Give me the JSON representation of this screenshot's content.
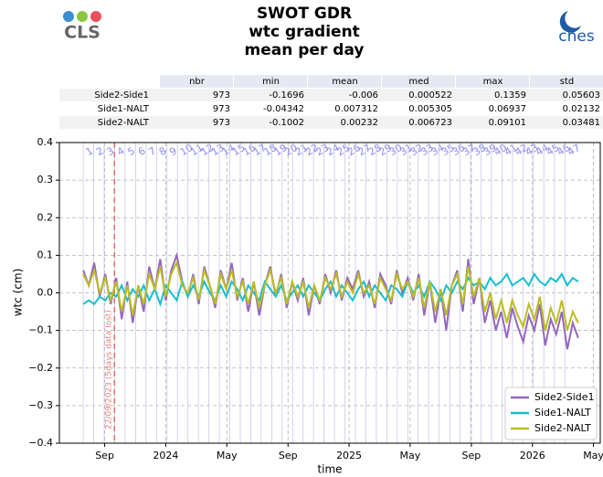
{
  "header": {
    "logo_left": "CLS",
    "logo_right": "cnes"
  },
  "table": {
    "columns": [
      "nbr",
      "min",
      "mean",
      "med",
      "max",
      "std"
    ],
    "rows": [
      {
        "label": "Side2-Side1",
        "cells": [
          973,
          -0.1696,
          -0.006,
          0.000522,
          0.1359,
          0.05603
        ]
      },
      {
        "label": "Side1-NALT",
        "cells": [
          973,
          -0.04342,
          0.007312,
          0.005305,
          0.06937,
          0.02132
        ]
      },
      {
        "label": "Side2-NALT",
        "cells": [
          973,
          -0.1002,
          0.00232,
          0.006723,
          0.09101,
          0.03481
        ]
      }
    ]
  },
  "chart_data": {
    "type": "line",
    "title": [
      "SWOT GDR",
      "wtc gradient",
      "mean per day"
    ],
    "xlabel": "time",
    "ylabel": "wtc (cm)",
    "xlim": [
      2023.42,
      2026.37
    ],
    "ylim": [
      -0.4,
      0.4
    ],
    "xticks": [
      {
        "value": 2023.667,
        "label": "Sep"
      },
      2024,
      {
        "value": 2024.333,
        "label": "May"
      },
      {
        "value": 2024.667,
        "label": "Sep"
      },
      2025,
      {
        "value": 2025.333,
        "label": "May"
      },
      {
        "value": 2025.667,
        "label": "Sep"
      },
      2026,
      {
        "value": 2026.333,
        "label": "May"
      }
    ],
    "yticks": [
      {
        "value": -0.4,
        "label": "−0.4"
      },
      {
        "value": -0.3,
        "label": "−0.3"
      },
      {
        "value": -0.2,
        "label": "−0.2"
      },
      {
        "value": -0.1,
        "label": "−0.1"
      },
      {
        "value": 0,
        "label": "0.0"
      },
      0.1,
      0.2,
      0.3,
      0.4
    ],
    "grid": true,
    "legend": "lower right",
    "cycle_labels": [
      "1",
      "2",
      "3",
      "4",
      "5",
      "6",
      "7",
      "8",
      "9",
      "10",
      "11",
      "12",
      "13",
      "14",
      "15",
      "16",
      "17",
      "18",
      "19",
      "20",
      "21",
      "22",
      "23",
      "24",
      "25",
      "26",
      "27",
      "28",
      "29",
      "30",
      "31",
      "32",
      "33",
      "34",
      "35",
      "36",
      "37",
      "38",
      "39",
      "40",
      "41",
      "42",
      "43",
      "44",
      "45",
      "46",
      "47"
    ],
    "cycle_starts": [
      2023.55,
      2023.607,
      2023.664,
      2023.721,
      2023.778,
      2023.836,
      2023.893,
      2023.95,
      2024.007,
      2024.064,
      2024.121,
      2024.178,
      2024.235,
      2024.292,
      2024.349,
      2024.407,
      2024.464,
      2024.521,
      2024.578,
      2024.635,
      2024.692,
      2024.749,
      2024.806,
      2024.863,
      2024.92,
      2024.978,
      2025.035,
      2025.092,
      2025.149,
      2025.206,
      2025.263,
      2025.32,
      2025.377,
      2025.434,
      2025.491,
      2025.549,
      2025.606,
      2025.663,
      2025.72,
      2025.777,
      2025.834,
      2025.891,
      2025.948,
      2026.005,
      2026.062,
      2026.12,
      2026.177
    ],
    "annotation": {
      "text": "22/09/2023 (5days data lost)",
      "x": 2023.72
    },
    "x": [
      2023.55,
      2023.58,
      2023.61,
      2023.64,
      2023.67,
      2023.7,
      2023.73,
      2023.76,
      2023.79,
      2023.82,
      2023.85,
      2023.88,
      2023.91,
      2023.94,
      2023.97,
      2024.0,
      2024.03,
      2024.06,
      2024.09,
      2024.12,
      2024.15,
      2024.18,
      2024.21,
      2024.24,
      2024.27,
      2024.3,
      2024.33,
      2024.36,
      2024.39,
      2024.42,
      2024.45,
      2024.48,
      2024.51,
      2024.54,
      2024.57,
      2024.6,
      2024.63,
      2024.66,
      2024.69,
      2024.72,
      2024.75,
      2024.78,
      2024.81,
      2024.84,
      2024.87,
      2024.9,
      2024.93,
      2024.96,
      2024.99,
      2025.02,
      2025.05,
      2025.08,
      2025.11,
      2025.14,
      2025.17,
      2025.2,
      2025.23,
      2025.26,
      2025.29,
      2025.32,
      2025.35,
      2025.38,
      2025.41,
      2025.44,
      2025.47,
      2025.5,
      2025.53,
      2025.56,
      2025.59,
      2025.62,
      2025.65,
      2025.68,
      2025.71,
      2025.74,
      2025.77,
      2025.8,
      2025.83,
      2025.86,
      2025.89,
      2025.92,
      2025.95,
      2025.98,
      2026.01,
      2026.04,
      2026.07,
      2026.1,
      2026.13,
      2026.16,
      2026.19,
      2026.22,
      2026.25
    ],
    "series": [
      {
        "name": "Side2-Side1",
        "color": "#9467bd",
        "values": [
          0.06,
          0.02,
          0.08,
          -0.01,
          0.05,
          -0.03,
          0.04,
          -0.07,
          0.03,
          -0.08,
          0.02,
          -0.05,
          0.07,
          0.01,
          0.09,
          -0.02,
          0.06,
          0.1,
          0.03,
          -0.01,
          0.05,
          -0.03,
          0.07,
          0.02,
          -0.04,
          0.06,
          0.01,
          0.08,
          -0.02,
          0.04,
          -0.05,
          0.03,
          -0.06,
          0.02,
          0.07,
          -0.01,
          0.05,
          -0.04,
          0.03,
          -0.02,
          0.04,
          -0.06,
          0.02,
          -0.03,
          0.05,
          0.0,
          0.06,
          -0.02,
          0.04,
          0.01,
          0.06,
          -0.01,
          0.03,
          -0.04,
          0.05,
          0.02,
          -0.03,
          0.06,
          0.0,
          0.04,
          -0.02,
          0.05,
          -0.06,
          0.03,
          -0.08,
          0.01,
          -0.1,
          0.02,
          0.06,
          -0.05,
          0.09,
          -0.03,
          0.04,
          -0.08,
          -0.02,
          -0.1,
          -0.05,
          -0.12,
          -0.04,
          -0.09,
          -0.13,
          -0.06,
          -0.1,
          -0.03,
          -0.14,
          -0.07,
          -0.11,
          -0.05,
          -0.15,
          -0.08,
          -0.12
        ]
      },
      {
        "name": "Side1-NALT",
        "color": "#17becf",
        "values": [
          -0.03,
          -0.02,
          -0.03,
          -0.01,
          -0.02,
          0.0,
          -0.01,
          0.02,
          -0.02,
          0.01,
          -0.01,
          0.02,
          -0.02,
          0.01,
          -0.03,
          0.02,
          0.0,
          -0.02,
          0.03,
          -0.01,
          0.02,
          -0.01,
          0.03,
          0.0,
          -0.02,
          0.02,
          -0.01,
          0.03,
          0.01,
          -0.02,
          0.02,
          0.0,
          -0.02,
          0.03,
          0.01,
          -0.01,
          0.02,
          -0.02,
          0.0,
          0.02,
          -0.01,
          0.02,
          0.0,
          -0.02,
          0.01,
          0.03,
          -0.01,
          0.02,
          0.0,
          -0.02,
          0.01,
          0.03,
          -0.01,
          0.02,
          0.0,
          -0.02,
          0.02,
          0.01,
          -0.01,
          0.03,
          0.0,
          0.02,
          -0.01,
          0.03,
          0.01,
          -0.02,
          0.02,
          0.0,
          0.03,
          0.01,
          0.04,
          0.02,
          0.03,
          0.01,
          0.04,
          0.02,
          0.03,
          0.05,
          0.02,
          0.03,
          0.04,
          0.02,
          0.05,
          0.03,
          0.02,
          0.04,
          0.03,
          0.05,
          0.02,
          0.04,
          0.03
        ]
      },
      {
        "name": "Side2-NALT",
        "color": "#bcbd22",
        "values": [
          0.05,
          0.02,
          0.06,
          0.0,
          0.04,
          -0.02,
          0.03,
          -0.05,
          0.02,
          -0.06,
          0.02,
          -0.03,
          0.05,
          0.01,
          0.07,
          -0.01,
          0.05,
          0.08,
          0.02,
          0.0,
          0.04,
          -0.02,
          0.06,
          0.02,
          -0.03,
          0.05,
          0.01,
          0.06,
          -0.01,
          0.03,
          -0.03,
          0.03,
          -0.04,
          0.02,
          0.06,
          0.0,
          0.04,
          -0.03,
          0.03,
          -0.01,
          0.03,
          -0.04,
          0.02,
          -0.02,
          0.04,
          0.01,
          0.05,
          -0.01,
          0.03,
          0.0,
          0.05,
          0.0,
          0.02,
          -0.03,
          0.04,
          0.01,
          -0.02,
          0.05,
          0.01,
          0.03,
          -0.01,
          0.04,
          -0.04,
          0.03,
          -0.05,
          0.01,
          -0.06,
          0.02,
          0.05,
          -0.03,
          0.07,
          -0.01,
          0.04,
          -0.05,
          0.0,
          -0.07,
          -0.02,
          -0.08,
          -0.02,
          -0.06,
          -0.09,
          -0.03,
          -0.07,
          -0.01,
          -0.1,
          -0.04,
          -0.08,
          -0.02,
          -0.1,
          -0.05,
          -0.08
        ]
      }
    ]
  }
}
